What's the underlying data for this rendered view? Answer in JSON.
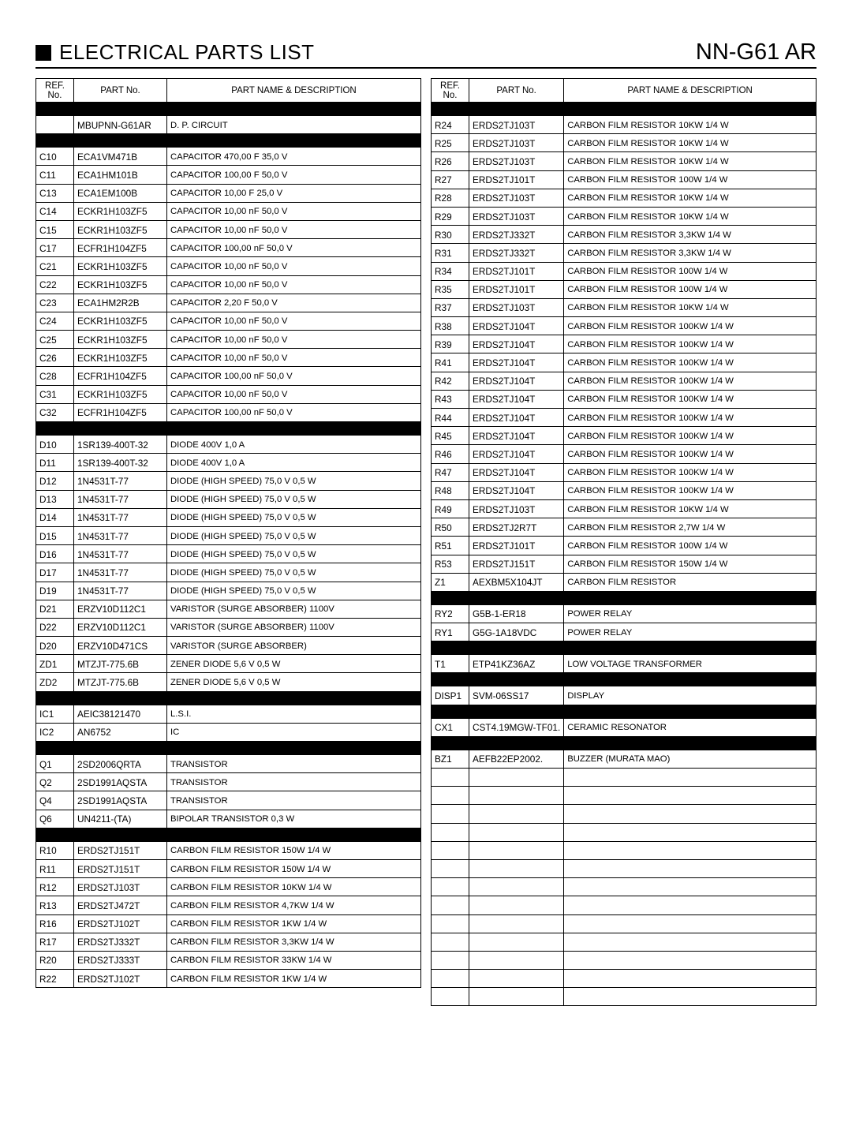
{
  "header": {
    "title": "ELECTRICAL PARTS LIST",
    "model": "NN-G61 AR"
  },
  "columns": {
    "ref": "REF. No.",
    "part": "PART No.",
    "desc": "PART NAME & DESCRIPTION"
  },
  "leftRows": [
    {
      "type": "black"
    },
    {
      "ref": "",
      "part": "MBUPNN-G61AR",
      "desc": "D. P. CIRCUIT"
    },
    {
      "type": "black"
    },
    {
      "ref": "C10",
      "part": "ECA1VM471B",
      "desc": "CAPACITOR 470,00  F 35,0 V"
    },
    {
      "ref": "C11",
      "part": "ECA1HM101B",
      "desc": "CAPACITOR 100,00  F 50,0 V"
    },
    {
      "ref": "C13",
      "part": "ECA1EM100B",
      "desc": "CAPACITOR 10,00  F 25,0 V"
    },
    {
      "ref": "C14",
      "part": "ECKR1H103ZF5",
      "desc": "CAPACITOR 10,00 nF 50,0 V"
    },
    {
      "ref": "C15",
      "part": "ECKR1H103ZF5",
      "desc": "CAPACITOR 10,00 nF 50,0 V"
    },
    {
      "ref": "C17",
      "part": "ECFR1H104ZF5",
      "desc": "CAPACITOR 100,00 nF 50,0 V"
    },
    {
      "ref": "C21",
      "part": "ECKR1H103ZF5",
      "desc": "CAPACITOR 10,00 nF 50,0 V"
    },
    {
      "ref": "C22",
      "part": "ECKR1H103ZF5",
      "desc": "CAPACITOR 10,00 nF 50,0 V"
    },
    {
      "ref": "C23",
      "part": "ECA1HM2R2B",
      "desc": "CAPACITOR 2,20  F 50,0 V"
    },
    {
      "ref": "C24",
      "part": "ECKR1H103ZF5",
      "desc": "CAPACITOR 10,00 nF 50,0 V"
    },
    {
      "ref": "C25",
      "part": "ECKR1H103ZF5",
      "desc": "CAPACITOR 10,00 nF 50,0 V"
    },
    {
      "ref": "C26",
      "part": "ECKR1H103ZF5",
      "desc": "CAPACITOR 10,00 nF 50,0 V"
    },
    {
      "ref": "C28",
      "part": "ECFR1H104ZF5",
      "desc": "CAPACITOR 100,00 nF 50,0 V"
    },
    {
      "ref": "C31",
      "part": "ECKR1H103ZF5",
      "desc": "CAPACITOR 10,00 nF 50,0 V"
    },
    {
      "ref": "C32",
      "part": "ECFR1H104ZF5",
      "desc": "CAPACITOR 100,00 nF 50,0 V"
    },
    {
      "type": "black"
    },
    {
      "ref": "D10",
      "part": "1SR139-400T-32",
      "desc": "DIODE 400V 1,0 A"
    },
    {
      "ref": "D11",
      "part": "1SR139-400T-32",
      "desc": "DIODE 400V 1,0 A"
    },
    {
      "ref": "D12",
      "part": "1N4531T-77",
      "desc": "DIODE (HIGH SPEED) 75,0 V 0,5 W"
    },
    {
      "ref": "D13",
      "part": "1N4531T-77",
      "desc": "DIODE (HIGH SPEED) 75,0 V 0,5 W"
    },
    {
      "ref": "D14",
      "part": "1N4531T-77",
      "desc": "DIODE (HIGH SPEED) 75,0 V 0,5 W"
    },
    {
      "ref": "D15",
      "part": "1N4531T-77",
      "desc": "DIODE (HIGH SPEED) 75,0 V 0,5 W"
    },
    {
      "ref": "D16",
      "part": "1N4531T-77",
      "desc": "DIODE (HIGH SPEED) 75,0 V 0,5 W"
    },
    {
      "ref": "D17",
      "part": "1N4531T-77",
      "desc": "DIODE (HIGH SPEED) 75,0 V 0,5 W"
    },
    {
      "ref": "D19",
      "part": "1N4531T-77",
      "desc": "DIODE (HIGH SPEED) 75,0 V 0,5 W"
    },
    {
      "ref": "D21",
      "part": "ERZV10D112C1",
      "desc": "VARISTOR (SURGE ABSORBER) 1100V"
    },
    {
      "ref": "D22",
      "part": "ERZV10D112C1",
      "desc": "VARISTOR (SURGE ABSORBER) 1100V"
    },
    {
      "ref": "D20",
      "part": "ERZV10D471CS",
      "desc": "VARISTOR (SURGE ABSORBER)"
    },
    {
      "ref": "ZD1",
      "part": "MTZJT-775.6B",
      "desc": "ZENER DIODE 5,6 V 0,5 W"
    },
    {
      "ref": "ZD2",
      "part": "MTZJT-775.6B",
      "desc": "ZENER DIODE 5,6 V 0,5 W"
    },
    {
      "type": "black"
    },
    {
      "ref": "IC1",
      "part": "AEIC38121470",
      "desc": "L.S.I."
    },
    {
      "ref": "IC2",
      "part": "AN6752",
      "desc": "IC"
    },
    {
      "type": "black"
    },
    {
      "ref": "Q1",
      "part": "2SD2006QRTA",
      "desc": "TRANSISTOR"
    },
    {
      "ref": "Q2",
      "part": "2SD1991AQSTA",
      "desc": "TRANSISTOR"
    },
    {
      "ref": "Q4",
      "part": "2SD1991AQSTA",
      "desc": "TRANSISTOR"
    },
    {
      "ref": "Q6",
      "part": "UN4211-(TA)",
      "desc": "BIPOLAR TRANSISTOR 0,3 W"
    },
    {
      "type": "black"
    },
    {
      "ref": "R10",
      "part": "ERDS2TJ151T",
      "desc": "CARBON FILM RESISTOR 150W 1/4 W"
    },
    {
      "ref": "R11",
      "part": "ERDS2TJ151T",
      "desc": "CARBON FILM RESISTOR 150W 1/4 W"
    },
    {
      "ref": "R12",
      "part": "ERDS2TJ103T",
      "desc": "CARBON FILM RESISTOR 10KW 1/4 W"
    },
    {
      "ref": "R13",
      "part": "ERDS2TJ472T",
      "desc": "CARBON FILM RESISTOR 4,7KW 1/4 W"
    },
    {
      "ref": "R16",
      "part": "ERDS2TJ102T",
      "desc": "CARBON FILM RESISTOR 1KW 1/4 W"
    },
    {
      "ref": "R17",
      "part": "ERDS2TJ332T",
      "desc": "CARBON FILM RESISTOR 3,3KW 1/4 W"
    },
    {
      "ref": "R20",
      "part": "ERDS2TJ333T",
      "desc": "CARBON FILM RESISTOR 33KW 1/4 W"
    },
    {
      "ref": "R22",
      "part": "ERDS2TJ102T",
      "desc": "CARBON FILM RESISTOR 1KW 1/4 W"
    }
  ],
  "rightRows": [
    {
      "type": "black"
    },
    {
      "ref": "R24",
      "part": "ERDS2TJ103T",
      "desc": "CARBON FILM RESISTOR 10KW 1/4 W"
    },
    {
      "ref": "R25",
      "part": "ERDS2TJ103T",
      "desc": "CARBON FILM RESISTOR 10KW 1/4 W"
    },
    {
      "ref": "R26",
      "part": "ERDS2TJ103T",
      "desc": "CARBON FILM RESISTOR 10KW 1/4 W"
    },
    {
      "ref": "R27",
      "part": "ERDS2TJ101T",
      "desc": "CARBON FILM RESISTOR 100W 1/4 W"
    },
    {
      "ref": "R28",
      "part": "ERDS2TJ103T",
      "desc": "CARBON FILM RESISTOR 10KW 1/4 W"
    },
    {
      "ref": "R29",
      "part": "ERDS2TJ103T",
      "desc": "CARBON FILM RESISTOR 10KW 1/4 W"
    },
    {
      "ref": "R30",
      "part": "ERDS2TJ332T",
      "desc": "CARBON FILM RESISTOR 3,3KW 1/4 W"
    },
    {
      "ref": "R31",
      "part": "ERDS2TJ332T",
      "desc": "CARBON FILM RESISTOR 3,3KW 1/4 W"
    },
    {
      "ref": "R34",
      "part": "ERDS2TJ101T",
      "desc": "CARBON FILM RESISTOR 100W 1/4 W"
    },
    {
      "ref": "R35",
      "part": "ERDS2TJ101T",
      "desc": "CARBON FILM RESISTOR 100W 1/4 W"
    },
    {
      "ref": "R37",
      "part": "ERDS2TJ103T",
      "desc": "CARBON FILM RESISTOR 10KW 1/4 W"
    },
    {
      "ref": "R38",
      "part": "ERDS2TJ104T",
      "desc": "CARBON FILM RESISTOR 100KW 1/4 W"
    },
    {
      "ref": "R39",
      "part": "ERDS2TJ104T",
      "desc": "CARBON FILM RESISTOR 100KW 1/4 W"
    },
    {
      "ref": "R41",
      "part": "ERDS2TJ104T",
      "desc": "CARBON FILM RESISTOR 100KW 1/4 W"
    },
    {
      "ref": "R42",
      "part": "ERDS2TJ104T",
      "desc": "CARBON FILM RESISTOR 100KW 1/4 W"
    },
    {
      "ref": "R43",
      "part": "ERDS2TJ104T",
      "desc": "CARBON FILM RESISTOR 100KW 1/4 W"
    },
    {
      "ref": "R44",
      "part": "ERDS2TJ104T",
      "desc": "CARBON FILM RESISTOR 100KW 1/4 W"
    },
    {
      "ref": "R45",
      "part": "ERDS2TJ104T",
      "desc": "CARBON FILM RESISTOR 100KW 1/4 W"
    },
    {
      "ref": "R46",
      "part": "ERDS2TJ104T",
      "desc": "CARBON FILM RESISTOR 100KW 1/4 W"
    },
    {
      "ref": "R47",
      "part": "ERDS2TJ104T",
      "desc": "CARBON FILM RESISTOR 100KW 1/4 W"
    },
    {
      "ref": "R48",
      "part": "ERDS2TJ104T",
      "desc": "CARBON FILM RESISTOR 100KW 1/4 W"
    },
    {
      "ref": "R49",
      "part": "ERDS2TJ103T",
      "desc": "CARBON FILM RESISTOR 10KW 1/4 W"
    },
    {
      "ref": "R50",
      "part": "ERDS2TJ2R7T",
      "desc": "CARBON FILM RESISTOR 2,7W 1/4 W"
    },
    {
      "ref": "R51",
      "part": "ERDS2TJ101T",
      "desc": "CARBON FILM RESISTOR 100W 1/4 W"
    },
    {
      "ref": "R53",
      "part": "ERDS2TJ151T",
      "desc": "CARBON FILM RESISTOR 150W 1/4 W"
    },
    {
      "ref": "Z1",
      "part": "AEXBM5X104JT",
      "desc": "CARBON FILM RESISTOR"
    },
    {
      "type": "black"
    },
    {
      "ref": "RY2",
      "part": "G5B-1-ER18",
      "desc": "POWER RELAY"
    },
    {
      "ref": "RY1",
      "part": "G5G-1A18VDC",
      "desc": "POWER RELAY"
    },
    {
      "type": "black"
    },
    {
      "ref": "T1",
      "part": "ETP41KZ36AZ",
      "desc": "LOW VOLTAGE TRANSFORMER"
    },
    {
      "type": "black"
    },
    {
      "ref": "DISP1",
      "part": "SVM-06SS17",
      "desc": "DISPLAY"
    },
    {
      "type": "black"
    },
    {
      "ref": "CX1",
      "part": "CST4.19MGW-TF01.",
      "desc": "CERAMIC RESONATOR"
    },
    {
      "type": "black"
    },
    {
      "ref": "BZ1",
      "part": "AEFB22EP2002.",
      "desc": "BUZZER (MURATA MAO)"
    },
    {
      "ref": "",
      "part": "",
      "desc": ""
    },
    {
      "ref": "",
      "part": "",
      "desc": ""
    },
    {
      "ref": "",
      "part": "",
      "desc": ""
    },
    {
      "ref": "",
      "part": "",
      "desc": ""
    },
    {
      "ref": "",
      "part": "",
      "desc": ""
    },
    {
      "ref": "",
      "part": "",
      "desc": ""
    },
    {
      "ref": "",
      "part": "",
      "desc": ""
    },
    {
      "ref": "",
      "part": "",
      "desc": ""
    },
    {
      "ref": "",
      "part": "",
      "desc": ""
    },
    {
      "ref": "",
      "part": "",
      "desc": ""
    },
    {
      "ref": "",
      "part": "",
      "desc": ""
    },
    {
      "ref": "",
      "part": "",
      "desc": ""
    },
    {
      "ref": "",
      "part": "",
      "desc": ""
    }
  ]
}
